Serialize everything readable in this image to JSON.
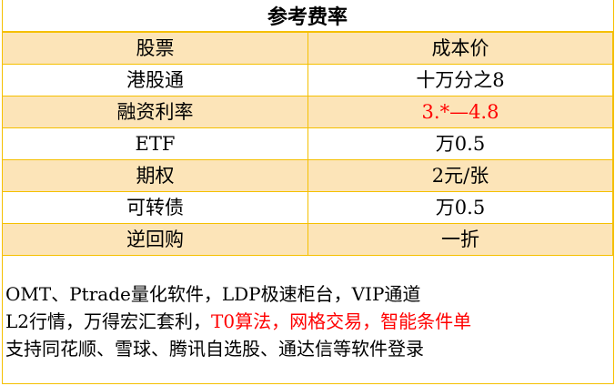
{
  "title": "参考费率",
  "header": [
    "股票",
    "成本价"
  ],
  "rows": [
    {
      "name": "港股通",
      "value": "十万分之8",
      "highlight": false
    },
    {
      "name": "融资利率",
      "value": "3.*—4.8",
      "highlight": true
    },
    {
      "name": "ETF",
      "value": "万0.5",
      "highlight": false
    },
    {
      "name": "期权",
      "value": "2元/张",
      "highlight": false
    },
    {
      "name": "可转债",
      "value": "万0.5",
      "highlight": false
    },
    {
      "name": "逆回购",
      "value": "一折",
      "highlight": false
    }
  ],
  "notes": {
    "line1": "OMT、Ptrade量化软件，LDP极速柜台，VIP通道",
    "line2_black": "L2行情，万得宏汇套利，",
    "line2_red": "T0算法，网格交易，智能条件单",
    "line3": "支持同花顺、雪球、腾讯自选股、通达信等软件登录"
  },
  "colors": {
    "border": "#f5c000",
    "band": "#fce4b8",
    "highlight": "#ff0000"
  }
}
